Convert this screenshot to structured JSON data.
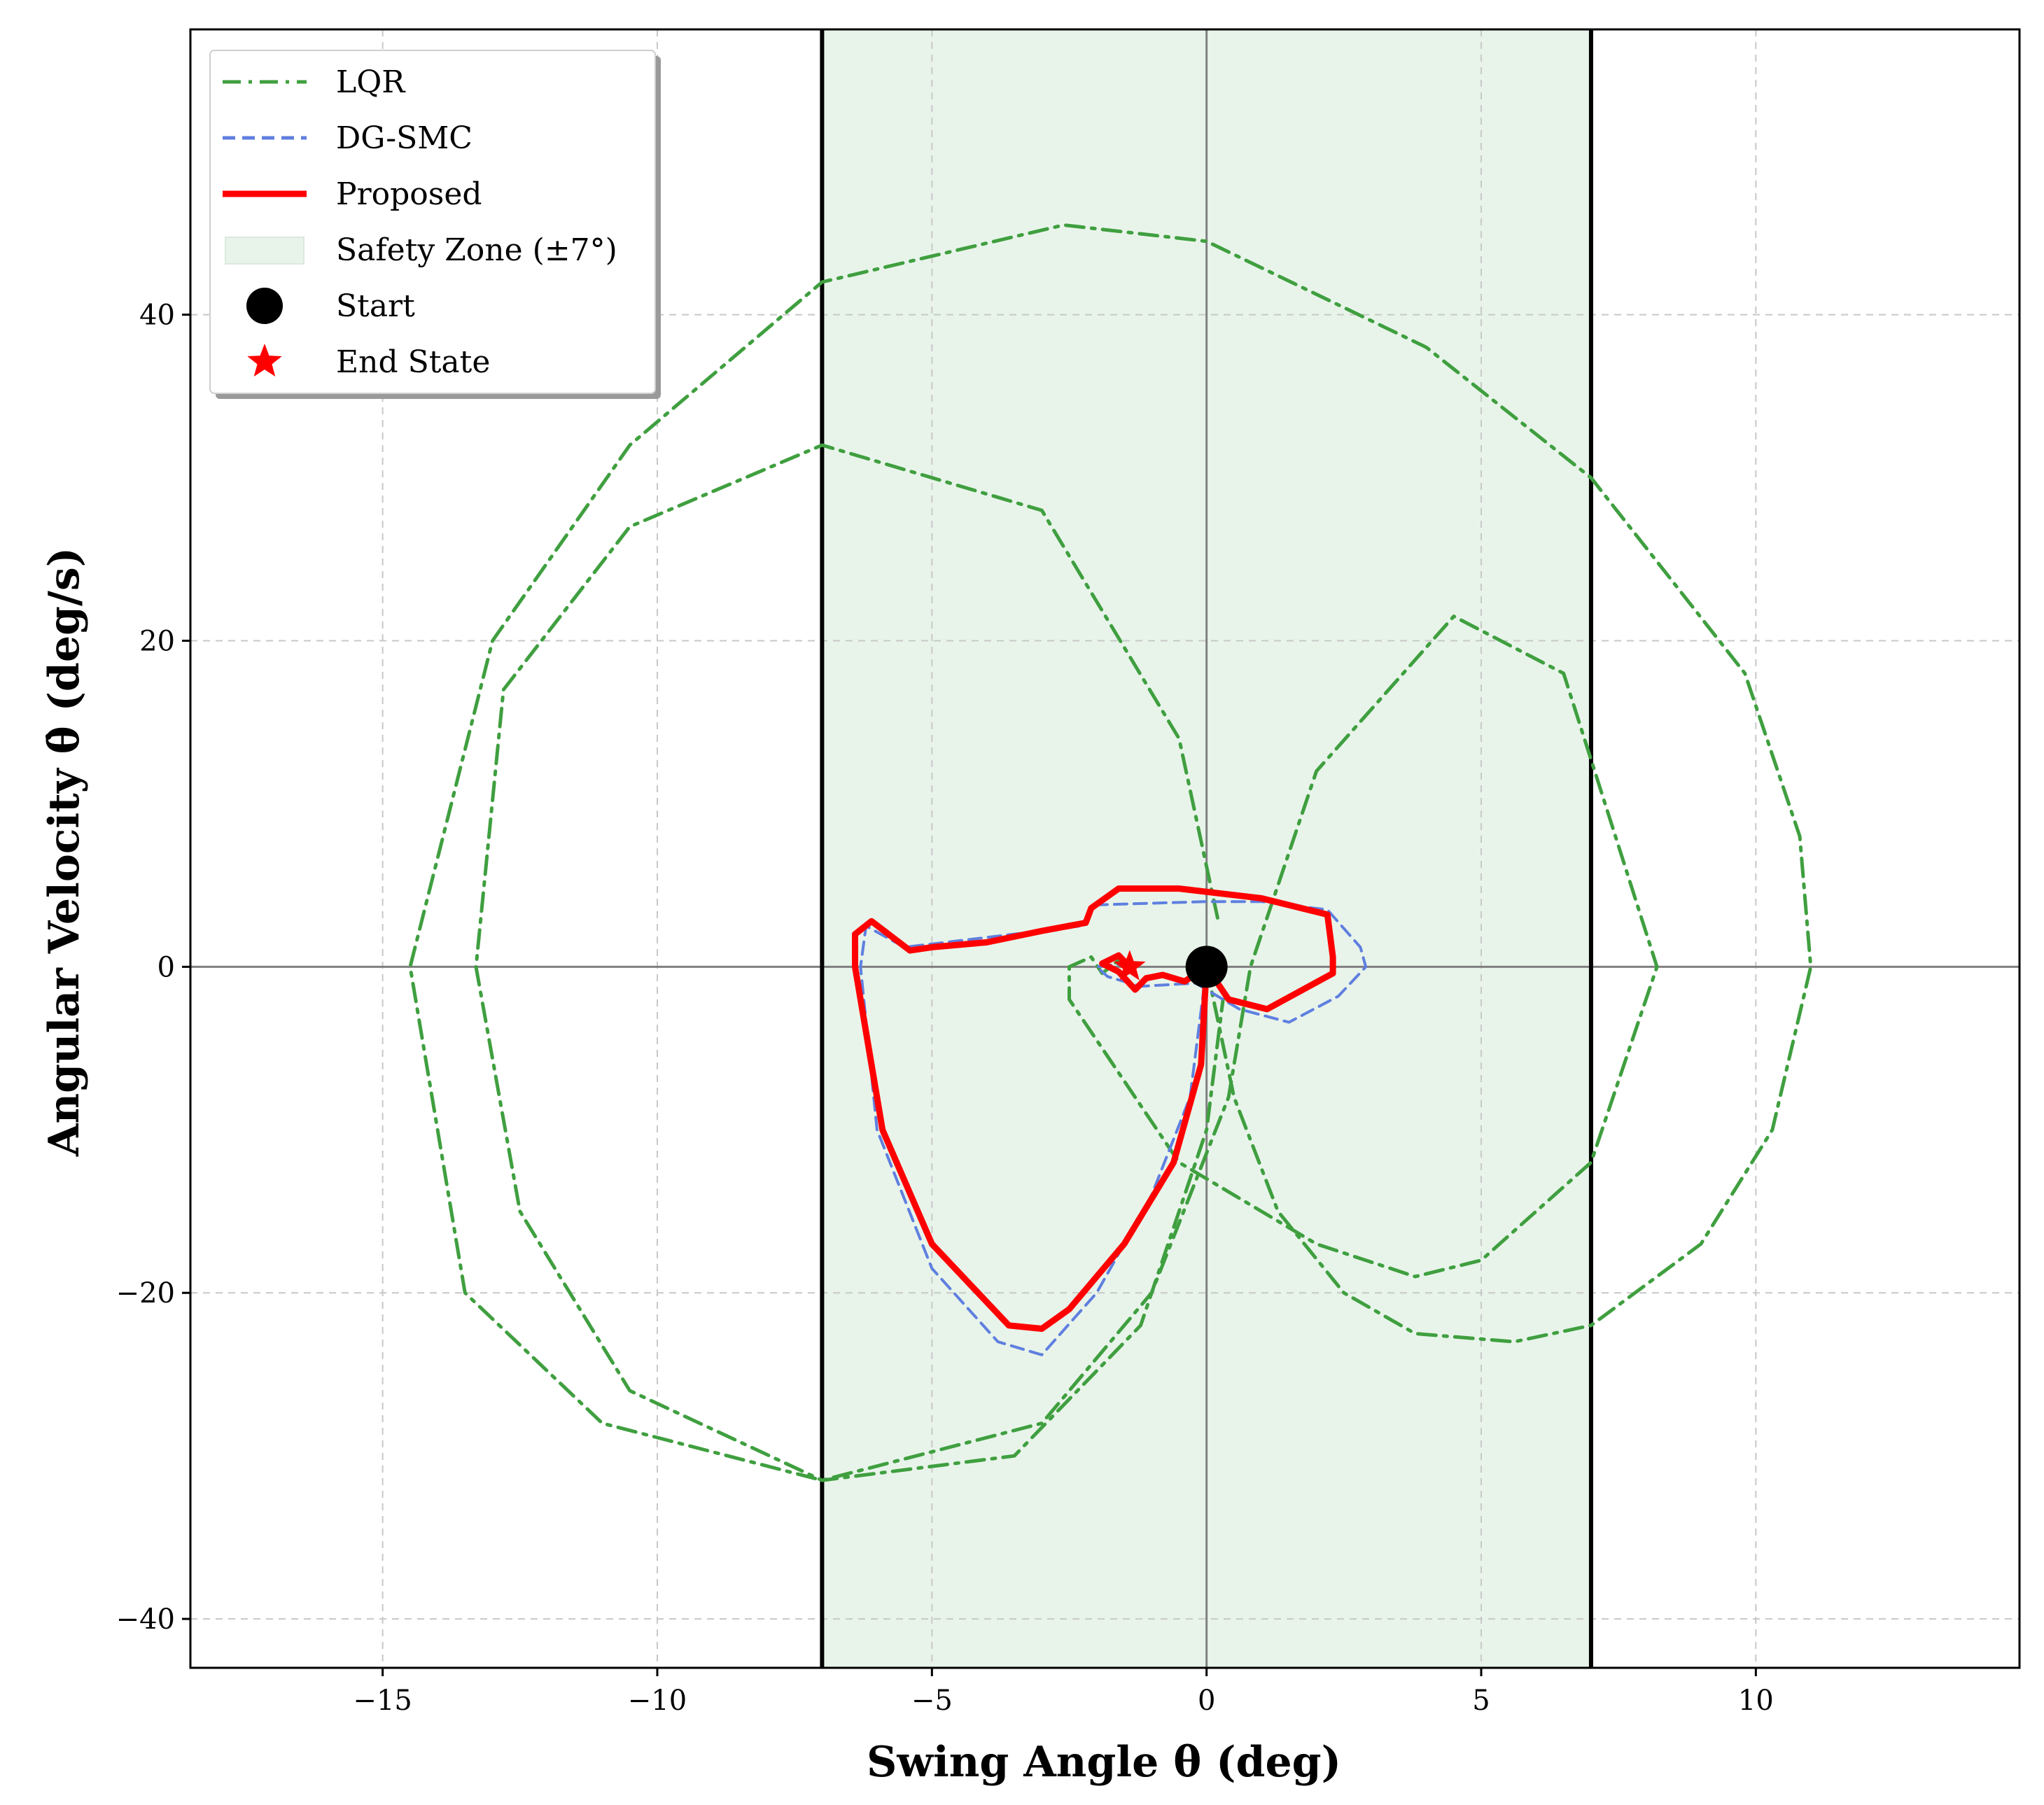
{
  "chart_data": {
    "type": "line",
    "title": "",
    "xlabel": "Swing Angle θ (deg)",
    "ylabel": "Angular Velocity θ̇ (deg/s)",
    "xlim": [
      -18.5,
      14.8
    ],
    "ylim": [
      -43.0,
      57.5
    ],
    "xticks": [
      -15,
      -10,
      -5,
      0,
      5,
      10
    ],
    "yticks": [
      -40,
      -20,
      0,
      20,
      40
    ],
    "xtick_labels": [
      "−15",
      "−10",
      "−5",
      "0",
      "5",
      "10"
    ],
    "ytick_labels": [
      "−40",
      "−20",
      "0",
      "20",
      "40"
    ],
    "grid": true,
    "legend_position": "top-left",
    "safety_zone": {
      "label": "Safety Zone (±7°)",
      "xmin": -7,
      "xmax": 7,
      "color": "#e8f4ea"
    },
    "boundary_lines": [
      -7,
      7
    ],
    "series": [
      {
        "name": "LQR",
        "style": "dashdot",
        "color": "#3f9f3f",
        "points": [
          [
            0,
            0
          ],
          [
            0.5,
            -8
          ],
          [
            1.3,
            -15
          ],
          [
            2.5,
            -20
          ],
          [
            3.8,
            -22.5
          ],
          [
            5.6,
            -23
          ],
          [
            7,
            -22
          ],
          [
            9,
            -17
          ],
          [
            10.3,
            -10
          ],
          [
            11,
            0
          ],
          [
            10.8,
            8
          ],
          [
            9.8,
            18
          ],
          [
            7,
            30
          ],
          [
            4,
            38
          ],
          [
            0,
            44.5
          ],
          [
            -2.6,
            45.5
          ],
          [
            -7,
            42
          ],
          [
            -10.5,
            32
          ],
          [
            -13,
            20
          ],
          [
            -14.5,
            0
          ],
          [
            -13.5,
            -20
          ],
          [
            -11,
            -28
          ],
          [
            -7,
            -31.5
          ],
          [
            -3,
            -28
          ],
          [
            -1,
            -20
          ],
          [
            0.4,
            -8
          ],
          [
            0.8,
            0
          ],
          [
            2,
            12
          ],
          [
            4.5,
            21.5
          ],
          [
            6.5,
            18
          ],
          [
            8.2,
            0
          ],
          [
            7,
            -12
          ],
          [
            5,
            -18
          ],
          [
            3.8,
            -19
          ],
          [
            2,
            -17
          ],
          [
            -0.5,
            -12
          ],
          [
            -2.5,
            -2
          ],
          [
            -2.5,
            0
          ],
          [
            -2.1,
            0.6
          ],
          [
            -1.9,
            -0.4
          ],
          [
            -1.6,
            0.4
          ],
          [
            -1.4,
            0
          ]
        ]
      },
      {
        "name": "",
        "style": "dashdot",
        "color": "#3f9f3f",
        "points": [
          [
            0.2,
            3
          ],
          [
            -0.5,
            14
          ],
          [
            -3,
            28
          ],
          [
            -7,
            32
          ],
          [
            -10.5,
            27
          ],
          [
            -12.8,
            17
          ],
          [
            -13.3,
            0
          ],
          [
            -12.5,
            -15
          ],
          [
            -10.5,
            -26
          ],
          [
            -7,
            -31.5
          ],
          [
            -3.5,
            -30
          ],
          [
            -1.2,
            -22
          ],
          [
            0,
            -10
          ],
          [
            0.3,
            -2
          ]
        ]
      },
      {
        "name": "DG-SMC",
        "style": "dashed",
        "color": "#5f7fdf",
        "points": [
          [
            0,
            0
          ],
          [
            -0.3,
            -8
          ],
          [
            -1,
            -14
          ],
          [
            -2,
            -20
          ],
          [
            -3,
            -23.8
          ],
          [
            -3.8,
            -23
          ],
          [
            -5,
            -18.5
          ],
          [
            -6,
            -10
          ],
          [
            -6.3,
            0
          ],
          [
            -6.2,
            2.5
          ],
          [
            -5.5,
            1.2
          ],
          [
            -4,
            1.8
          ],
          [
            -2.3,
            2.5
          ],
          [
            -2,
            3.8
          ],
          [
            0,
            4
          ],
          [
            1,
            4
          ],
          [
            2.2,
            3.5
          ],
          [
            2.8,
            1.2
          ],
          [
            2.9,
            0
          ],
          [
            2.4,
            -1.8
          ],
          [
            1.5,
            -3.4
          ],
          [
            0.6,
            -2.6
          ],
          [
            -0.2,
            -1
          ],
          [
            -1.2,
            -1.2
          ],
          [
            -1.8,
            -0.6
          ],
          [
            -2,
            0
          ],
          [
            -1.5,
            0.2
          ]
        ]
      },
      {
        "name": "Proposed",
        "style": "solid",
        "color": "#ff0000",
        "points": [
          [
            0,
            0
          ],
          [
            -0.1,
            -6
          ],
          [
            -0.6,
            -12
          ],
          [
            -1.5,
            -17
          ],
          [
            -2.5,
            -21
          ],
          [
            -3,
            -22.2
          ],
          [
            -3.6,
            -22
          ],
          [
            -5,
            -17
          ],
          [
            -5.9,
            -10
          ],
          [
            -6.4,
            0
          ],
          [
            -6.4,
            2
          ],
          [
            -6.1,
            2.8
          ],
          [
            -5.4,
            1
          ],
          [
            -5,
            1.2
          ],
          [
            -4,
            1.5
          ],
          [
            -3,
            2.2
          ],
          [
            -2.2,
            2.7
          ],
          [
            -2.1,
            3.6
          ],
          [
            -1.6,
            4.8
          ],
          [
            -0.5,
            4.8
          ],
          [
            1,
            4.2
          ],
          [
            2.2,
            3.2
          ],
          [
            2.3,
            0.6
          ],
          [
            2.3,
            -0.4
          ],
          [
            1.7,
            -1.5
          ],
          [
            1.1,
            -2.6
          ],
          [
            0.4,
            -2
          ],
          [
            0,
            0
          ],
          [
            -0.4,
            -0.9
          ],
          [
            -0.8,
            -0.5
          ],
          [
            -1.1,
            -0.7
          ],
          [
            -1.3,
            -1.4
          ],
          [
            -1.6,
            -0.3
          ],
          [
            -1.9,
            0.2
          ],
          [
            -1.6,
            0.7
          ],
          [
            -1.4,
            0
          ]
        ]
      }
    ],
    "markers": [
      {
        "name": "Start",
        "shape": "circle",
        "color": "#000000",
        "x": 0,
        "y": 0
      },
      {
        "name": "End State",
        "shape": "star",
        "color": "#ff0000",
        "x": -1.4,
        "y": 0
      }
    ],
    "legend": [
      {
        "label": "LQR",
        "kind": "line",
        "style": "dashdot",
        "color": "#3f9f3f"
      },
      {
        "label": "DG-SMC",
        "kind": "line",
        "style": "dashed",
        "color": "#5f7fdf"
      },
      {
        "label": "Proposed",
        "kind": "line",
        "style": "solid",
        "color": "#ff0000"
      },
      {
        "label": "Safety Zone (±7°)",
        "kind": "patch",
        "color": "#e8f4ea"
      },
      {
        "label": "Start",
        "kind": "circle",
        "color": "#000000"
      },
      {
        "label": "End State",
        "kind": "star",
        "color": "#ff0000"
      }
    ]
  }
}
